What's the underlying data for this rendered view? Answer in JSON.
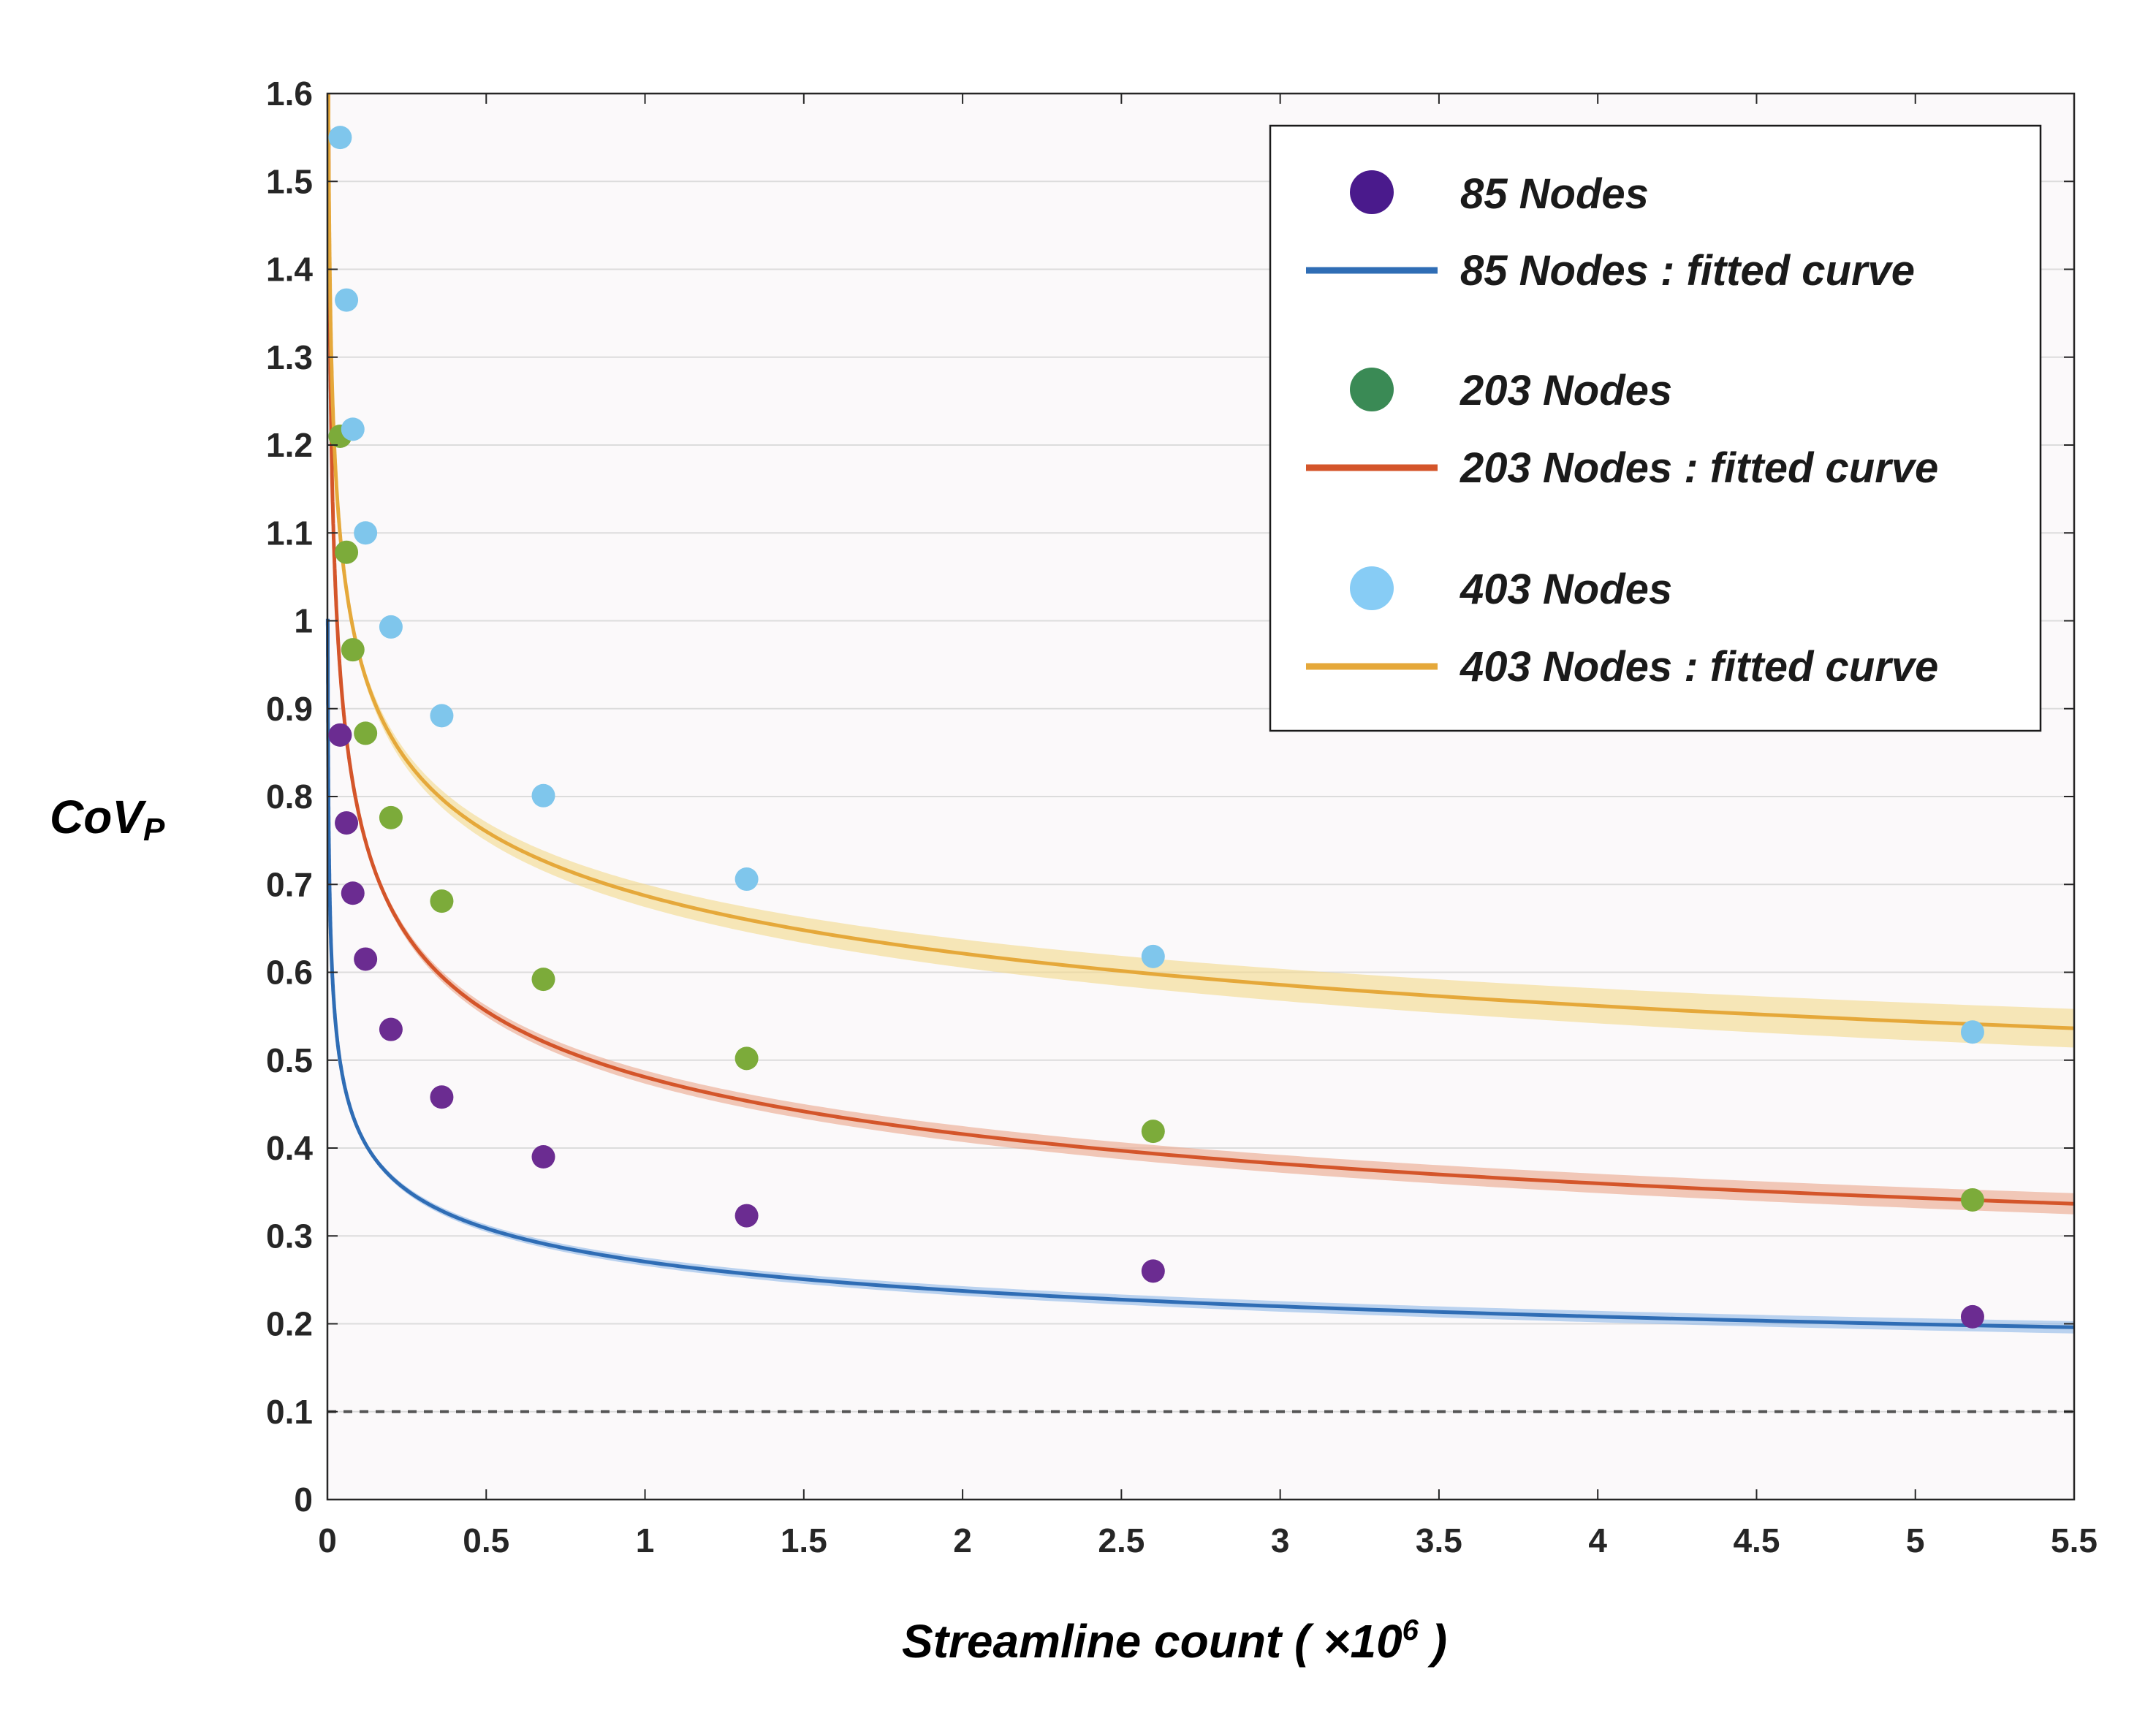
{
  "chart_data": {
    "type": "scatter",
    "title": "",
    "xlabel": "Streamline count ( ×10",
    "xlabel_exponent": "6",
    "xlabel_suffix": " )",
    "ylabel_main": "CoV",
    "ylabel_sub": "P",
    "xlim": [
      0,
      5.5
    ],
    "ylim": [
      0,
      1.6
    ],
    "x_ticks": [
      "0",
      "0.5",
      "1",
      "1.5",
      "2",
      "2.5",
      "3",
      "3.5",
      "4",
      "4.5",
      "5",
      "5.5"
    ],
    "y_ticks": [
      "0",
      "0.1",
      "0.2",
      "0.3",
      "0.4",
      "0.5",
      "0.6",
      "0.7",
      "0.8",
      "0.9",
      "1",
      "1.1",
      "1.2",
      "1.3",
      "1.4",
      "1.5",
      "1.6"
    ],
    "grid": "horizontal",
    "reference_line": {
      "y": 0.1,
      "style": "dashed"
    },
    "legend_position": "top-right",
    "x": [
      0.04,
      0.06,
      0.08,
      0.12,
      0.2,
      0.36,
      0.68,
      1.32,
      2.6,
      5.18
    ],
    "series": [
      {
        "name": "85 Nodes",
        "fit_name": "85 Nodes : fitted curve",
        "marker_color": "#4a1a8c",
        "point_color": "#6b2c91",
        "line_color": "#2f6db5",
        "band_color": "#8fb8e8",
        "x": [
          0.04,
          0.06,
          0.08,
          0.12,
          0.2,
          0.36,
          0.68,
          1.32,
          2.6,
          5.18
        ],
        "values": [
          0.87,
          0.77,
          0.69,
          0.615,
          0.535,
          0.458,
          0.39,
          0.323,
          0.26,
          0.208
        ],
        "fit": {
          "a": 0.2707,
          "b": -0.1895,
          "band": 0.005
        }
      },
      {
        "name": "203 Nodes",
        "fit_name": "203 Nodes : fitted curve",
        "marker_color": "#3a8a55",
        "point_color": "#7cab3a",
        "line_color": "#d4552a",
        "band_color": "#eba58a",
        "x": [
          0.04,
          0.06,
          0.08,
          0.12,
          0.2,
          0.36,
          0.68,
          1.32,
          2.6,
          5.18
        ],
        "values": [
          1.21,
          1.078,
          0.967,
          0.872,
          0.776,
          0.681,
          0.592,
          0.502,
          0.419,
          0.341
        ],
        "fit": {
          "a": 0.4808,
          "b": -0.2092,
          "band": 0.01
        }
      },
      {
        "name": "403 Nodes",
        "fit_name": "403 Nodes : fitted curve",
        "marker_color": "#87ccf5",
        "point_color": "#7fc6ec",
        "line_color": "#e5a83a",
        "band_color": "#f3d98a",
        "x": [
          0.04,
          0.06,
          0.08,
          0.12,
          0.2,
          0.36,
          0.68,
          1.32,
          2.6,
          5.18
        ],
        "values": [
          1.55,
          1.365,
          1.218,
          1.1,
          0.993,
          0.892,
          0.801,
          0.706,
          0.618,
          0.532
        ],
        "fit": {
          "a": 0.6873,
          "b": -0.1455,
          "band": 0.02
        }
      }
    ]
  }
}
